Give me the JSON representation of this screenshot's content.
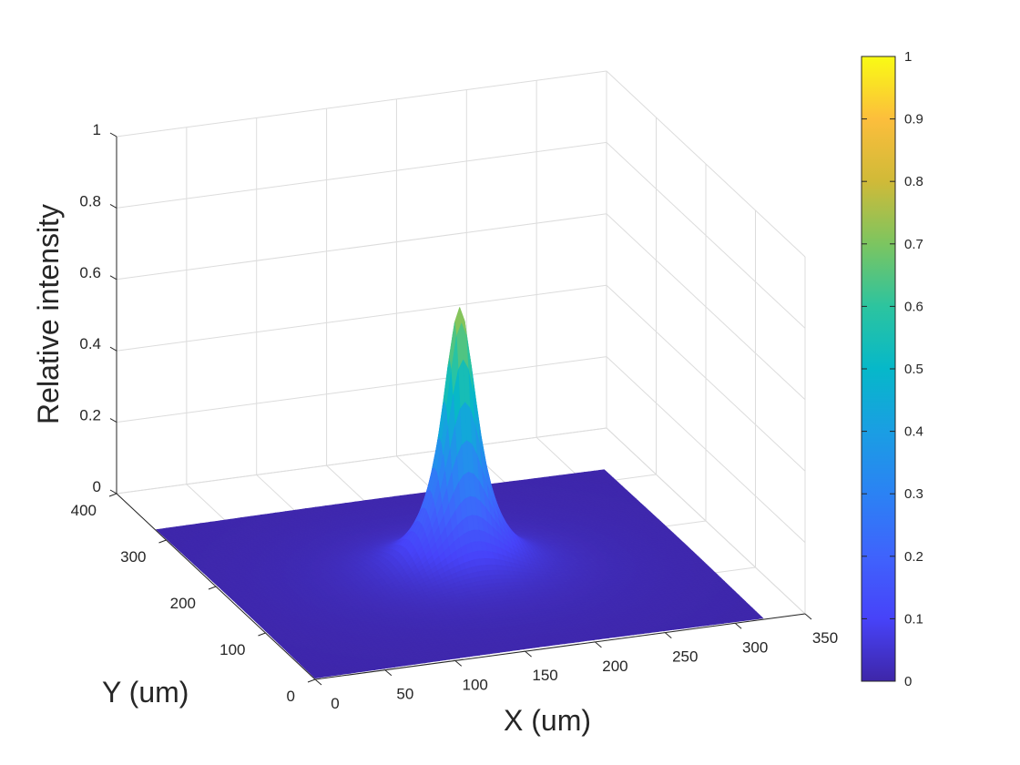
{
  "chart_data": {
    "type": "surface",
    "title": "",
    "xlabel": "X (um)",
    "ylabel": "Y (um)",
    "zlabel": "Relative intensity",
    "xlim": [
      0,
      350
    ],
    "ylim": [
      0,
      400
    ],
    "zlim": [
      0,
      1
    ],
    "x_ticks": [
      "0",
      "50",
      "100",
      "150",
      "200",
      "250",
      "300",
      "350"
    ],
    "y_ticks": [
      "0",
      "100",
      "200",
      "300",
      "400"
    ],
    "z_ticks": [
      "0",
      "0.2",
      "0.4",
      "0.6",
      "0.8",
      "1"
    ],
    "grid": true,
    "surface": {
      "x_range": [
        0,
        320
      ],
      "y_range": [
        0,
        320
      ],
      "peak_x": 160,
      "peak_y": 160,
      "peak_value": 0.75,
      "falloff": "lorentzian",
      "half_width_um": 15
    },
    "colorbar": {
      "colormap": "parula",
      "range": [
        0,
        1
      ],
      "ticks": [
        "0",
        "0.1",
        "0.2",
        "0.3",
        "0.4",
        "0.5",
        "0.6",
        "0.7",
        "0.8",
        "0.9",
        "1"
      ],
      "location": "right"
    }
  }
}
